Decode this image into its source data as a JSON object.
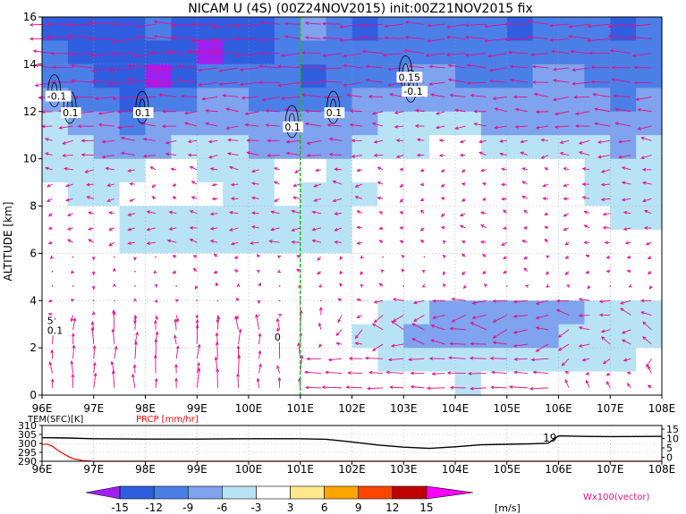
{
  "chart_data": [
    {
      "type": "heatmap",
      "title": "NICAM U (4S) (00Z24NOV2015) init:00Z21NOV2015 fix",
      "ylabel": "ALTITUDE [km]",
      "x_ticks": [
        "96E",
        "97E",
        "98E",
        "99E",
        "100E",
        "101E",
        "102E",
        "103E",
        "104E",
        "105E",
        "106E",
        "107E",
        "108E"
      ],
      "y_ticks": [
        "0",
        "2",
        "4",
        "6",
        "8",
        "10",
        "12",
        "14",
        "16"
      ],
      "xlim": [
        96,
        108
      ],
      "ylim": [
        0,
        16
      ],
      "grid": true,
      "marker_line_x": 101,
      "contour_labels": [
        {
          "text": "-0.1",
          "x": 96.1,
          "y": 12.5
        },
        {
          "text": "0.1",
          "x": 96.4,
          "y": 11.8
        },
        {
          "text": "0.1",
          "x": 97.8,
          "y": 11.8
        },
        {
          "text": "0.1",
          "x": 100.7,
          "y": 11.2
        },
        {
          "text": "0.1",
          "x": 101.5,
          "y": 11.8
        },
        {
          "text": "0.15",
          "x": 102.9,
          "y": 13.3
        },
        {
          "text": "-0.1",
          "x": 103.0,
          "y": 12.7
        },
        {
          "text": "0",
          "x": 100.5,
          "y": 2.3
        },
        {
          "text": "5",
          "x": 96.1,
          "y": 3.0
        },
        {
          "text": "0.1",
          "x": 96.1,
          "y": 2.6
        }
      ],
      "u_field_rows_top_to_bottom": [
        [
          -13,
          -15,
          -15,
          -13,
          -11,
          -13,
          -15,
          -15,
          -13,
          -11,
          -9,
          -11,
          -13,
          -12,
          -11,
          -10,
          -11,
          -12,
          -13,
          -12,
          -11,
          -12,
          -13,
          -12
        ],
        [
          -11,
          -13,
          -14,
          -13,
          -13,
          -15,
          -17,
          -15,
          -13,
          -11,
          -11,
          -11,
          -11,
          -12,
          -12,
          -11,
          -11,
          -12,
          -11,
          -10,
          -10,
          -11,
          -12,
          -11
        ],
        [
          -10,
          -12,
          -13,
          -15,
          -16,
          -13,
          -11,
          -11,
          -11,
          -12,
          -13,
          -12,
          -11,
          -10,
          -9,
          -9,
          -10,
          -11,
          -10,
          -9,
          -9,
          -10,
          -11,
          -10
        ],
        [
          -8,
          -10,
          -11,
          -13,
          -12,
          -10,
          -9,
          -9,
          -10,
          -10,
          -11,
          -10,
          -9,
          -8,
          -8,
          -8,
          -9,
          -9,
          -8,
          -8,
          -9,
          -9,
          -10,
          -9
        ],
        [
          -6,
          -8,
          -9,
          -10,
          -9,
          -8,
          -7,
          -7,
          -8,
          -8,
          -9,
          -8,
          -7,
          -6,
          -5,
          -5,
          -6,
          -7,
          -7,
          -7,
          -8,
          -8,
          -9,
          -8
        ],
        [
          -4,
          -6,
          -7,
          -8,
          -7,
          -6,
          -5,
          -6,
          -7,
          -7,
          -8,
          -7,
          -6,
          -5,
          -4,
          -3,
          -3,
          -4,
          -4,
          -4,
          -5,
          -6,
          -7,
          -6
        ],
        [
          -4,
          -5,
          -5,
          -4,
          -3,
          -3,
          -4,
          -5,
          -4,
          -3,
          -3,
          -4,
          -3,
          -3,
          -2,
          -2,
          -2,
          -3,
          -3,
          -2,
          -3,
          -4,
          -5,
          -5
        ],
        [
          -3,
          -4,
          -4,
          -3,
          -2,
          -2,
          -3,
          -4,
          -4,
          -3,
          -4,
          -5,
          -4,
          -3,
          -2,
          -2,
          -2,
          -2,
          -3,
          -3,
          -3,
          -4,
          -5,
          -5
        ],
        [
          -2,
          -3,
          -3,
          -4,
          -5,
          -4,
          -4,
          -5,
          -4,
          -5,
          -5,
          -4,
          -3,
          -2,
          -2,
          -2,
          -3,
          -3,
          -2,
          -2,
          -3,
          -3,
          -4,
          -4
        ],
        [
          -2,
          -3,
          -3,
          -4,
          -5,
          -5,
          -4,
          -4,
          -5,
          -6,
          -5,
          -4,
          -3,
          -2,
          -2,
          -1,
          -2,
          -3,
          -3,
          -2,
          -2,
          -3,
          -3,
          -3
        ],
        [
          -1,
          -1,
          0,
          0,
          -1,
          -2,
          -2,
          -2,
          -1,
          -1,
          -2,
          -1,
          -1,
          -1,
          -1,
          -1,
          -2,
          -2,
          -2,
          -1,
          -2,
          -2,
          -2,
          -2
        ],
        [
          -1,
          0,
          0,
          1,
          1,
          0,
          -1,
          0,
          1,
          0,
          -1,
          -1,
          -1,
          -2,
          -1,
          -1,
          -1,
          -1,
          -1,
          -1,
          -1,
          -1,
          -1,
          -1
        ],
        [
          -2,
          -1,
          0,
          0,
          1,
          1,
          0,
          -1,
          0,
          1,
          0,
          -2,
          -3,
          -5,
          -6,
          -7,
          -8,
          -8,
          -8,
          -7,
          -7,
          -6,
          -6,
          -6
        ],
        [
          -3,
          -2,
          -1,
          0,
          1,
          0,
          -1,
          -2,
          -1,
          0,
          -1,
          -3,
          -4,
          -6,
          -7,
          -8,
          -9,
          -9,
          -8,
          -7,
          -6,
          -6,
          -5,
          -5
        ],
        [
          -2,
          -1,
          0,
          1,
          0,
          0,
          -1,
          -1,
          0,
          0,
          -1,
          -2,
          -3,
          -4,
          -5,
          -6,
          -6,
          -6,
          -5,
          -5,
          -4,
          -4,
          -4,
          -3
        ],
        [
          -1,
          0,
          1,
          0,
          0,
          -1,
          0,
          0,
          -1,
          0,
          0,
          -1,
          -2,
          -3,
          -3,
          -3,
          -4,
          -3,
          -3,
          -3,
          -2,
          -2,
          -2,
          -2
        ]
      ],
      "colorbar": {
        "levels": [
          "-15",
          "-12",
          "-9",
          "-6",
          "-3",
          "3",
          "6",
          "9",
          "12",
          "15"
        ],
        "unit": "[m/s]",
        "colors": [
          "#a020f0",
          "#2f5fe0",
          "#4a7fe8",
          "#7fa3ee",
          "#b8e3f5",
          "#ffffff",
          "#ffe98a",
          "#ffa500",
          "#ff4500",
          "#c00000",
          "#ff00ff"
        ]
      },
      "vector_label": "Wx100(vector)",
      "vector_color": "#e0108c"
    },
    {
      "type": "line",
      "labels": {
        "left": "TEM(SFC)[K]",
        "right": "PRCP [mm/hr]"
      },
      "x_ticks": [
        "96E",
        "97E",
        "98E",
        "99E",
        "100E",
        "101E",
        "102E",
        "103E",
        "104E",
        "105E",
        "106E",
        "107E",
        "108E"
      ],
      "y_left_ticks": [
        "310",
        "305",
        "300",
        "295",
        "290"
      ],
      "y_right_ticks": [
        "15",
        "10",
        "5",
        "0"
      ],
      "series": [
        {
          "name": "TEM(SFC)[K]",
          "color": "#000000",
          "x": [
            96,
            96.5,
            97,
            98,
            99,
            100,
            101,
            101.5,
            102,
            102.5,
            103,
            103.5,
            104,
            104.5,
            105,
            105.5,
            105.8,
            106,
            106.5,
            107,
            108
          ],
          "y": [
            303.2,
            303.0,
            302.6,
            302.4,
            302.4,
            302.6,
            302.6,
            302.3,
            300.8,
            299.1,
            297.9,
            297.2,
            298.1,
            299.2,
            299.5,
            299.8,
            300.1,
            304.2,
            303.9,
            303.8,
            303.9
          ]
        },
        {
          "name": "PRCP [mm/hr]",
          "color": "#ff0000",
          "x": [
            96,
            96.1,
            96.2,
            96.3,
            96.45,
            96.6,
            96.8,
            97,
            98,
            108
          ],
          "y": [
            9.4,
            9.6,
            8.4,
            6.2,
            3.6,
            1.4,
            0.3,
            0,
            0,
            0
          ]
        }
      ],
      "annotations": [
        "19"
      ]
    }
  ]
}
